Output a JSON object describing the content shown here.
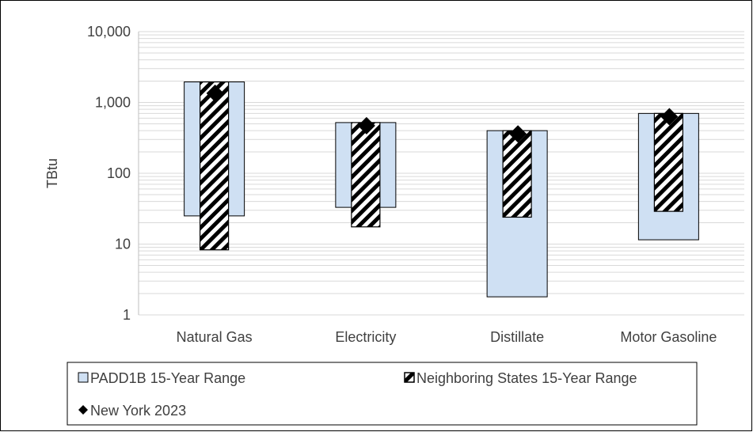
{
  "chart_data": {
    "type": "floating-bar",
    "ylabel": "TBtu",
    "yscale": "log",
    "ylim": [
      1,
      10000
    ],
    "yticks": [
      {
        "value": 1,
        "label": "1"
      },
      {
        "value": 10,
        "label": "10"
      },
      {
        "value": 100,
        "label": "100"
      },
      {
        "value": 1000,
        "label": "1,000"
      },
      {
        "value": 10000,
        "label": "10,000"
      }
    ],
    "categories": [
      "Natural Gas",
      "Electricity",
      "Distillate",
      "Motor Gasoline"
    ],
    "series": [
      {
        "name": "PADD1B 15-Year Range",
        "style": "range-box",
        "ranges": [
          [
            25,
            1950
          ],
          [
            33,
            520
          ],
          [
            1.8,
            400
          ],
          [
            11.5,
            700
          ]
        ]
      },
      {
        "name": "Neighboring States 15-Year Range",
        "style": "range-box-hatched",
        "ranges": [
          [
            8.3,
            1950
          ],
          [
            17.5,
            520
          ],
          [
            24,
            400
          ],
          [
            29,
            700
          ]
        ]
      },
      {
        "name": "New York 2023",
        "style": "marker",
        "values": [
          1350,
          470,
          360,
          630
        ]
      }
    ],
    "grid": true,
    "legend_position": "bottom"
  },
  "colors": {
    "padd_fill": "#cfe0f3",
    "hatch_dark": "#000000",
    "hatch_light": "#ffffff",
    "marker": "#000000",
    "grid": "#d9d9d9",
    "text": "#404040"
  }
}
